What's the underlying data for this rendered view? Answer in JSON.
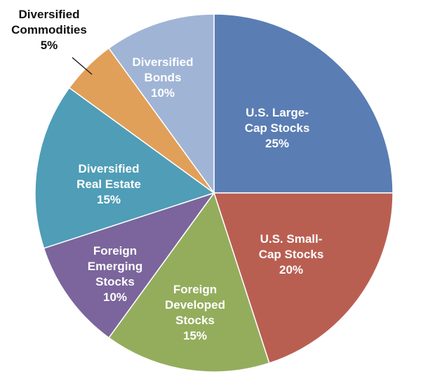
{
  "chart_data": {
    "type": "pie",
    "title": "",
    "slices": [
      {
        "label": "U.S. Large-Cap Stocks",
        "label_lines": [
          "U.S. Large-",
          "Cap Stocks",
          "25%"
        ],
        "value": 25,
        "color": "#5a7db3"
      },
      {
        "label": "U.S. Small-Cap Stocks",
        "label_lines": [
          "U.S. Small-",
          "Cap Stocks",
          "20%"
        ],
        "value": 20,
        "color": "#b95f52"
      },
      {
        "label": "Foreign Developed Stocks",
        "label_lines": [
          "Foreign",
          "Developed",
          "Stocks",
          "15%"
        ],
        "value": 15,
        "color": "#94ad5c"
      },
      {
        "label": "Foreign Emerging Stocks",
        "label_lines": [
          "Foreign",
          "Emerging",
          "Stocks",
          "10%"
        ],
        "value": 10,
        "color": "#7b659c"
      },
      {
        "label": "Diversified Real Estate",
        "label_lines": [
          "Diversified",
          "Real Estate",
          "15%"
        ],
        "value": 15,
        "color": "#4f9db7"
      },
      {
        "label": "Diversified Commodities",
        "label_lines": [
          "Diversified",
          "Commodities",
          "5%"
        ],
        "value": 5,
        "color": "#e0a059",
        "label_outside": true
      },
      {
        "label": "Diversified Bonds",
        "label_lines": [
          "Diversified",
          "Bonds",
          "10%"
        ],
        "value": 10,
        "color": "#a0b4d6"
      }
    ],
    "start_angle_deg": 0,
    "direction": "clockwise",
    "legend": "none"
  }
}
